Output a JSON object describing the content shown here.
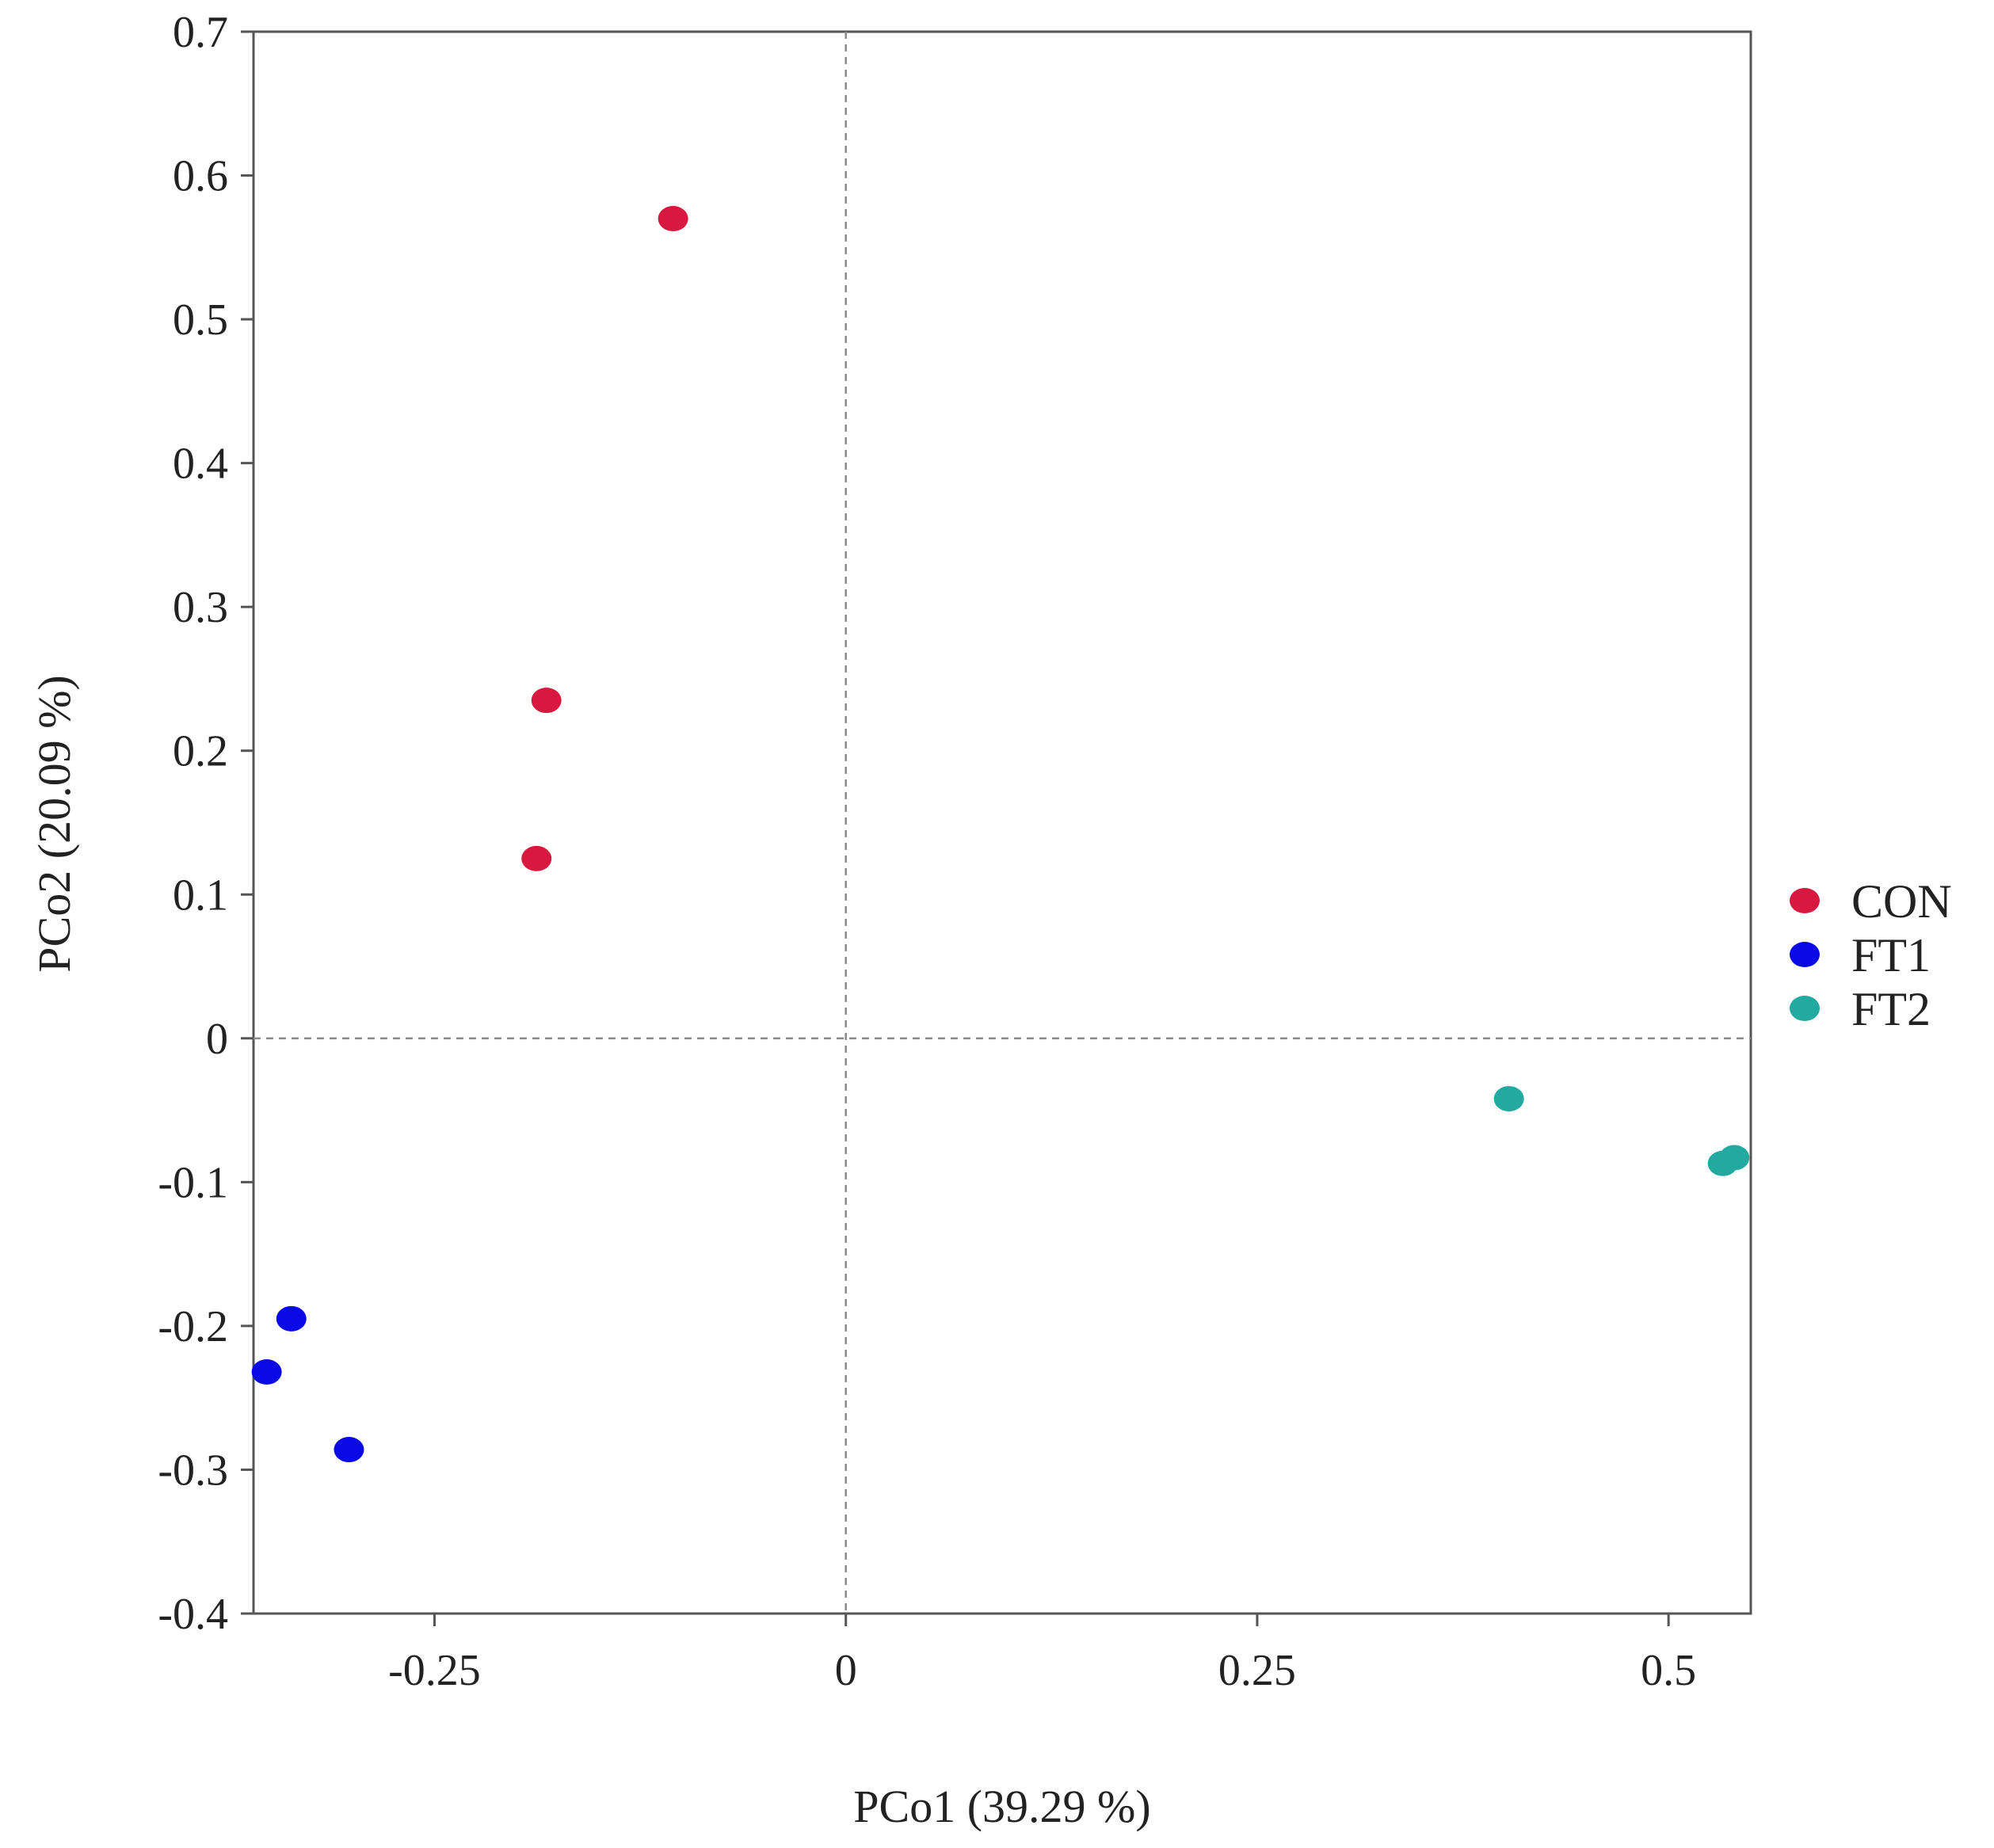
{
  "chart_data": {
    "type": "scatter",
    "title": "",
    "xlabel": "PCo1 (39.29 %)",
    "ylabel": "PCo2 (20.09 %)",
    "xlim": [
      -0.36,
      0.55
    ],
    "ylim": [
      -0.4,
      0.7
    ],
    "x_ticks": [
      -0.25,
      0,
      0.25,
      0.5
    ],
    "x_tick_labels": [
      "-0.25",
      "0",
      "0.25",
      "0.5"
    ],
    "y_ticks": [
      0.7,
      0.6,
      0.5,
      0.4,
      0.3,
      0.2,
      0.1,
      0,
      -0.1,
      -0.2,
      -0.3,
      -0.4
    ],
    "y_tick_labels": [
      "0.7",
      "0.6",
      "0.5",
      "0.4",
      "0.3",
      "0.2",
      "0.1",
      "0",
      "-0.1",
      "-0.2",
      "-0.3",
      "-0.4"
    ],
    "reference_lines": {
      "x": 0,
      "y": 0,
      "style": "dashed"
    },
    "grid": false,
    "legend_position": "right",
    "series": [
      {
        "name": "CON",
        "color": "#d7193f",
        "points": [
          [
            -0.105,
            0.57
          ],
          [
            -0.182,
            0.235
          ],
          [
            -0.188,
            0.125
          ]
        ]
      },
      {
        "name": "FT1",
        "color": "#0a0ae6",
        "points": [
          [
            -0.337,
            -0.195
          ],
          [
            -0.352,
            -0.232
          ],
          [
            -0.302,
            -0.286
          ]
        ]
      },
      {
        "name": "FT2",
        "color": "#22aaa0",
        "points": [
          [
            0.403,
            -0.042
          ],
          [
            0.533,
            -0.087
          ],
          [
            0.54,
            -0.083
          ]
        ]
      }
    ]
  }
}
